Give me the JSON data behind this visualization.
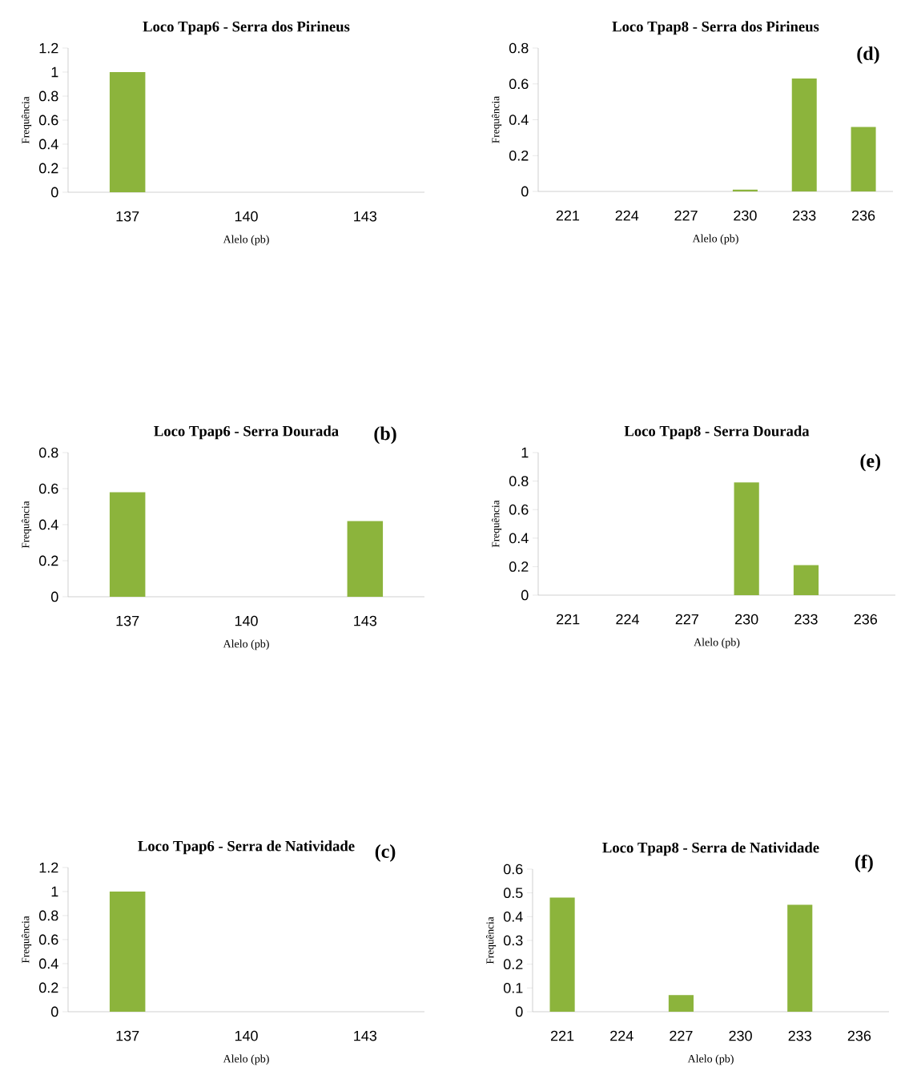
{
  "chart_data": [
    {
      "type": "bar",
      "title": "Loco Tpap6 -  Serra dos Pirineus",
      "xlabel": "Alelo (pb)",
      "ylabel": "Frequência",
      "categories": [
        "137",
        "140",
        "143"
      ],
      "values": [
        1,
        0,
        0
      ],
      "color": "#8cb43c",
      "ylim": [
        0,
        1.2
      ],
      "yticks": [
        0,
        0.2,
        0.4,
        0.6,
        0.8,
        1,
        1.2
      ]
    },
    {
      "type": "bar",
      "title": "Loco Tpap8 - Serra dos Pirineus",
      "xlabel": "Alelo (pb)",
      "ylabel": "Frequência",
      "annotations": [
        "(d)"
      ],
      "categories": [
        "221",
        "224",
        "227",
        "230",
        "233",
        "236"
      ],
      "values": [
        0,
        0,
        0,
        0.01,
        0.63,
        0.36
      ],
      "color": "#8cb43c",
      "ylim": [
        0,
        0.8
      ],
      "yticks": [
        0,
        0.2,
        0.4,
        0.6,
        0.8
      ]
    },
    {
      "type": "bar",
      "title": "Loco Tpap6 - Serra Dourada",
      "xlabel": "Alelo (pb)",
      "ylabel": "Frequência",
      "annotations": [
        "(b)"
      ],
      "categories": [
        "137",
        "140",
        "143"
      ],
      "values": [
        0.58,
        0,
        0.42
      ],
      "color": "#8cb43c",
      "ylim": [
        0,
        0.8
      ],
      "yticks": [
        0,
        0.2,
        0.4,
        0.6,
        0.8
      ]
    },
    {
      "type": "bar",
      "title": "Loco Tpap8  - Serra Dourada",
      "xlabel": "Alelo (pb)",
      "ylabel": "Frequência",
      "annotations": [
        "(e)"
      ],
      "categories": [
        "221",
        "224",
        "227",
        "230",
        "233",
        "236"
      ],
      "values": [
        0,
        0,
        0,
        0.79,
        0.21,
        0
      ],
      "color": "#8cb43c",
      "ylim": [
        0,
        1
      ],
      "yticks": [
        0,
        0.2,
        0.4,
        0.6,
        0.8,
        1
      ]
    },
    {
      "type": "bar",
      "title": "Loco Tpap6 - Serra de Natividade",
      "xlabel": "Alelo (pb)",
      "ylabel": "Frequência",
      "annotations": [
        "(c)"
      ],
      "categories": [
        "137",
        "140",
        "143"
      ],
      "values": [
        1,
        0,
        0
      ],
      "color": "#8cb43c",
      "ylim": [
        0,
        1.2
      ],
      "yticks": [
        0,
        0.2,
        0.4,
        0.6,
        0.8,
        1,
        1.2
      ]
    },
    {
      "type": "bar",
      "title": "Loco Tpap8  - Serra de Natividade",
      "xlabel": "Alelo (pb)",
      "ylabel": "Frequência",
      "annotations": [
        "(f)"
      ],
      "categories": [
        "221",
        "224",
        "227",
        "230",
        "233",
        "236"
      ],
      "values": [
        0.48,
        0,
        0.07,
        0,
        0.45,
        0
      ],
      "color": "#8cb43c",
      "ylim": [
        0,
        0.6
      ],
      "yticks": [
        0,
        0.1,
        0.2,
        0.3,
        0.4,
        0.5,
        0.6
      ]
    }
  ]
}
